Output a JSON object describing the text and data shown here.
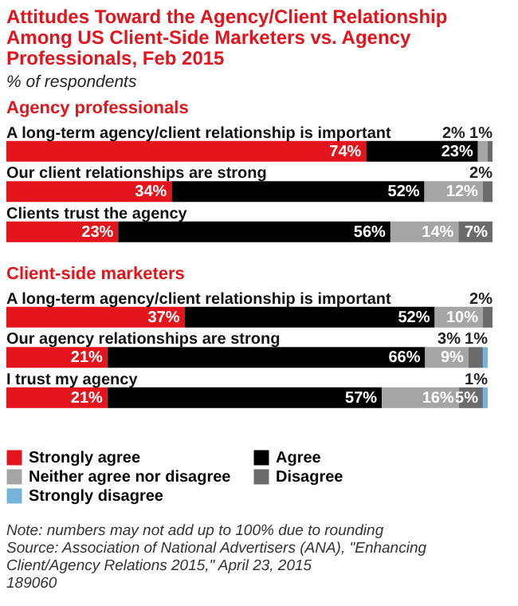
{
  "chart_data": [
    {
      "type": "bar",
      "orientation": "horizontal",
      "stacked": true,
      "title": "Attitudes Toward the Agency/Client Relationship Among US Client-Side Marketers vs. Agency Professionals, Feb 2015",
      "subtitle": "% of respondents",
      "ylabel": "Agency professionals",
      "tick_labels": "y",
      "categories": [
        "A long-term agency/client relationship is important",
        "Our client relationships are strong",
        "Clients trust the agency"
      ],
      "series": [
        {
          "color": "#e3141b",
          "values": [
            74,
            34,
            23
          ],
          "value_labels": [
            "74%",
            "34%",
            "23%"
          ]
        },
        {
          "color": "#000000",
          "values": [
            23,
            52,
            56
          ],
          "value_labels": [
            "23%",
            "52%",
            "56%"
          ]
        },
        {
          "color": "#a5a5a5",
          "values": [
            2,
            12,
            14
          ],
          "value_labels": [
            "2%",
            "12%",
            "14%"
          ]
        },
        {
          "color": "#6b6b6b",
          "values": [
            1,
            2,
            7
          ],
          "value_labels": [
            "1%",
            "2%",
            "7%"
          ]
        },
        {
          "color": "#76b3d8",
          "values": [
            0,
            0,
            0
          ],
          "value_labels": [
            null,
            null,
            null
          ]
        }
      ]
    },
    {
      "type": "bar",
      "orientation": "horizontal",
      "stacked": true,
      "ylabel": "Client-side marketers",
      "tick_labels": "y",
      "legend": "bottom",
      "categories": [
        "A long-term agency/client relationship is important",
        "Our agency relationships are strong",
        "I trust my agency"
      ],
      "series": [
        {
          "name": "Strongly agree",
          "color": "#e3141b",
          "values": [
            37,
            21,
            21
          ],
          "value_labels": [
            "37%",
            "21%",
            "21%"
          ]
        },
        {
          "name": "Agree",
          "color": "#000000",
          "values": [
            52,
            66,
            57
          ],
          "value_labels": [
            "52%",
            "66%",
            "57%"
          ]
        },
        {
          "name": "Neither agree nor disagree",
          "color": "#a5a5a5",
          "values": [
            10,
            9,
            16
          ],
          "value_labels": [
            "10%",
            "9%",
            "16%"
          ]
        },
        {
          "name": "Disagree",
          "color": "#6b6b6b",
          "values": [
            2,
            3,
            5
          ],
          "value_labels": [
            "2%",
            "3%",
            "5%"
          ]
        },
        {
          "name": "Strongly disagree",
          "color": "#76b3d8",
          "values": [
            0,
            1,
            1
          ],
          "value_labels": [
            null,
            "1%",
            "1%"
          ]
        }
      ],
      "annotations": [
        "Note: numbers may not add up to 100% due to rounding",
        "Source: Association of National Advertisers (ANA), \"Enhancing Client/Agency Relations 2015,\" April 23, 2015",
        "189060"
      ]
    }
  ]
}
